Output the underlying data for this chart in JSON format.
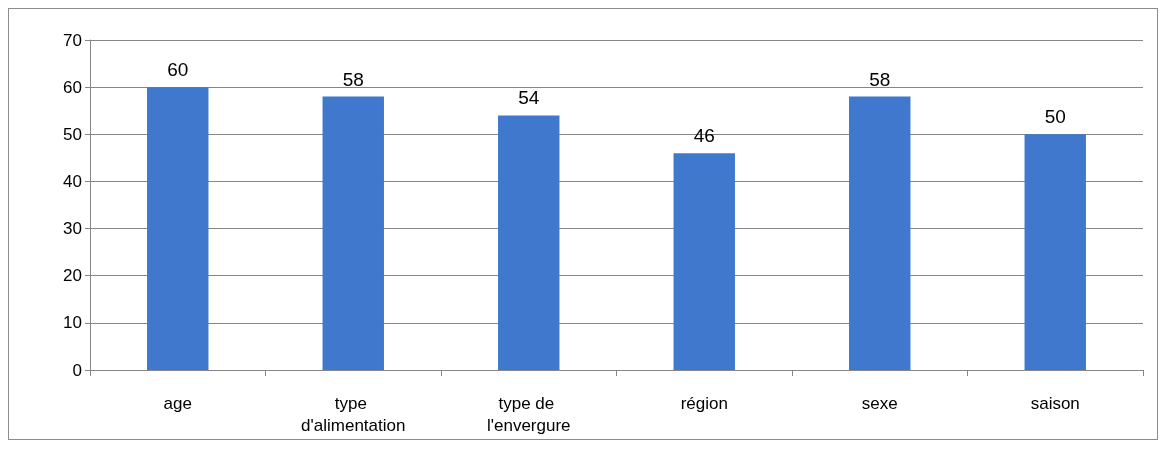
{
  "chart_data": {
    "type": "bar",
    "categories": [
      "age",
      "type d'alimentation",
      "type de l'envergure",
      "région",
      "sexe",
      "saison"
    ],
    "values": [
      60,
      58,
      54,
      46,
      58,
      50
    ],
    "color": "#3f78cc",
    "ylim": [
      0,
      70
    ],
    "yticks": [
      0,
      10,
      20,
      30,
      40,
      50,
      60,
      70
    ],
    "grid": "y",
    "data_labels": true
  }
}
